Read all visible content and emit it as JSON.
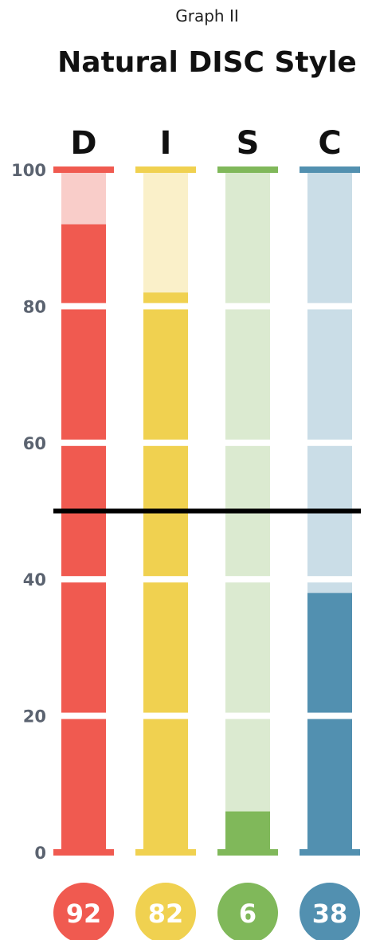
{
  "header": {
    "subtitle": "Graph II",
    "title": "Natural DISC Style"
  },
  "chart_data": {
    "type": "bar",
    "title": "Natural DISC Style",
    "subtitle": "Graph II",
    "categories": [
      "D",
      "I",
      "S",
      "C"
    ],
    "values": [
      92,
      82,
      6,
      38
    ],
    "ylim": [
      0,
      100
    ],
    "yticks": [
      0,
      20,
      40,
      60,
      80,
      100
    ],
    "reference_line": 50,
    "colors": {
      "D": {
        "fill": "#f05a50",
        "light": "#f9cdc9"
      },
      "I": {
        "fill": "#f0d150",
        "light": "#faf0c9"
      },
      "S": {
        "fill": "#80b85a",
        "light": "#dbead0"
      },
      "C": {
        "fill": "#5290b0",
        "light": "#cadde7"
      }
    },
    "reference_line_color": "#000000"
  }
}
